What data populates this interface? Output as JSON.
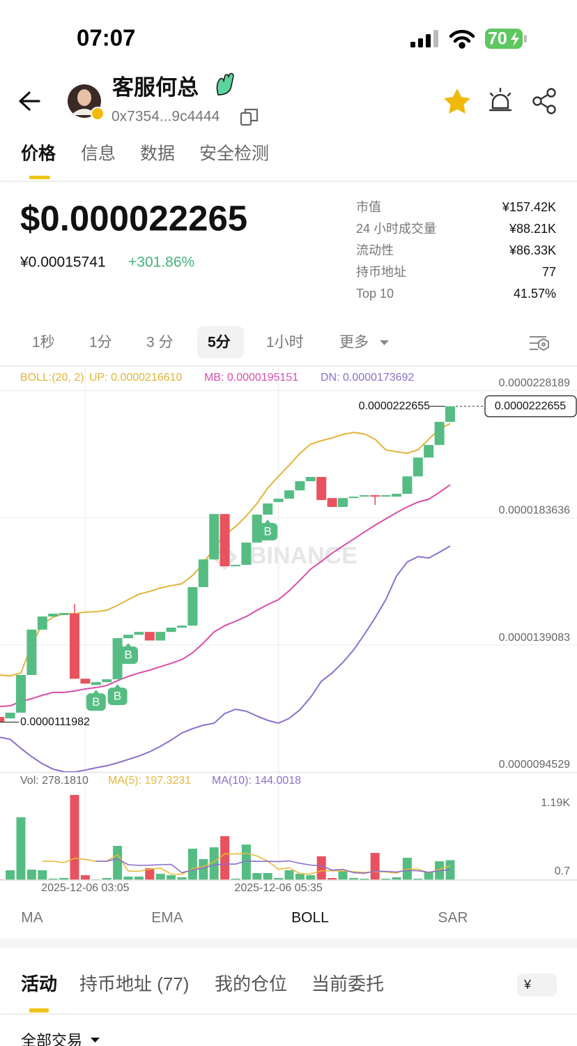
{
  "status_bar": {
    "time": "07:07",
    "battery": "70"
  },
  "header": {
    "name": "客服何总",
    "address": "0x7354...9c4444"
  },
  "tabs": [
    "价格",
    "信息",
    "数据",
    "安全检测"
  ],
  "price": {
    "usd": "$0.000022265",
    "cny": "¥0.00015741",
    "change": "+301.86%"
  },
  "stats": [
    {
      "label": "市值",
      "value": "¥157.42K"
    },
    {
      "label": "24 小时成交量",
      "value": "¥88.21K"
    },
    {
      "label": "流动性",
      "value": "¥86.33K"
    },
    {
      "label": "持币地址",
      "value": "77"
    },
    {
      "label": "Top 10",
      "value": "41.57%"
    }
  ],
  "intervals": [
    "1秒",
    "1分",
    "3 分",
    "5分",
    "1小时",
    "更多"
  ],
  "chart_data": {
    "type": "candlestick",
    "watermark": "BINANCE",
    "up_color": "#55bd83",
    "down_color": "#e8525e",
    "grid": true,
    "ylim": [
      9.4529e-06,
      2.28189e-05
    ],
    "yticks": [
      2.28189e-05,
      1.83636e-05,
      1.39083e-05,
      9.4529e-06
    ],
    "x": [
      null,
      null,
      null,
      null,
      null,
      null,
      null,
      null,
      "2025-12-06 03:05",
      null,
      null,
      null,
      null,
      null,
      null,
      null,
      null,
      null,
      null,
      null,
      null,
      null,
      null,
      null,
      null,
      null,
      "2025-12-06 05:35",
      null,
      null,
      null,
      null,
      null,
      null,
      null,
      null,
      null,
      null,
      null,
      null,
      null,
      null,
      null,
      null
    ],
    "open": [
      1.138e-05,
      1.133e-05,
      1.153e-05,
      1.285e-05,
      1.444e-05,
      1.49e-05,
      1.495e-05,
      1.5e-05,
      1.272e-05,
      1.25e-05,
      1.26e-05,
      1.27e-05,
      1.414e-05,
      1.426e-05,
      1.436e-05,
      1.406e-05,
      1.436e-05,
      1.451e-05,
      1.458e-05,
      1.593e-05,
      1.69e-05,
      1.849e-05,
      1.666e-05,
      1.671e-05,
      1.749e-05,
      1.847e-05,
      1.891e-05,
      1.903e-05,
      1.932e-05,
      1.964e-05,
      1.979e-05,
      1.905e-05,
      1.874e-05,
      1.905e-05,
      1.91e-05,
      1.915e-05,
      1.91e-05,
      1.91e-05,
      1.92e-05,
      1.981e-05,
      2.047e-05,
      2.091e-05,
      2.172e-05
    ],
    "high": [
      1.138e-05,
      1.153e-05,
      1.285e-05,
      1.444e-05,
      1.49e-05,
      1.5e-05,
      1.502e-05,
      1.534e-05,
      1.272e-05,
      1.26e-05,
      1.27e-05,
      1.414e-05,
      1.426e-05,
      1.436e-05,
      1.436e-05,
      1.436e-05,
      1.451e-05,
      1.458e-05,
      1.593e-05,
      1.69e-05,
      1.849e-05,
      1.849e-05,
      1.671e-05,
      1.749e-05,
      1.847e-05,
      1.886e-05,
      1.903e-05,
      1.932e-05,
      1.964e-05,
      1.979e-05,
      1.979e-05,
      1.905e-05,
      1.905e-05,
      1.91e-05,
      1.915e-05,
      1.915e-05,
      1.915e-05,
      1.92e-05,
      1.981e-05,
      2.047e-05,
      2.091e-05,
      2.172e-05,
      2.22655e-05
    ],
    "low": [
      1.11982e-05,
      1.133e-05,
      1.153e-05,
      1.285e-05,
      1.444e-05,
      1.49e-05,
      1.495e-05,
      1.272e-05,
      1.255e-05,
      1.25e-05,
      1.26e-05,
      1.27e-05,
      1.414e-05,
      1.426e-05,
      1.406e-05,
      1.406e-05,
      1.436e-05,
      1.451e-05,
      1.458e-05,
      1.593e-05,
      1.69e-05,
      1.666e-05,
      1.666e-05,
      1.671e-05,
      1.749e-05,
      1.847e-05,
      1.891e-05,
      1.903e-05,
      1.932e-05,
      1.964e-05,
      1.898e-05,
      1.874e-05,
      1.874e-05,
      1.905e-05,
      1.91e-05,
      1.881e-05,
      1.91e-05,
      1.91e-05,
      1.92e-05,
      1.981e-05,
      2.047e-05,
      2.091e-05,
      2.172e-05
    ],
    "close": [
      1.121e-05,
      1.153e-05,
      1.285e-05,
      1.444e-05,
      1.49e-05,
      1.5e-05,
      1.502e-05,
      1.272e-05,
      1.255e-05,
      1.26e-05,
      1.27e-05,
      1.414e-05,
      1.426e-05,
      1.436e-05,
      1.406e-05,
      1.436e-05,
      1.451e-05,
      1.458e-05,
      1.593e-05,
      1.69e-05,
      1.849e-05,
      1.666e-05,
      1.671e-05,
      1.749e-05,
      1.847e-05,
      1.886e-05,
      1.903e-05,
      1.932e-05,
      1.964e-05,
      1.979e-05,
      1.898e-05,
      1.874e-05,
      1.905e-05,
      1.91e-05,
      1.915e-05,
      1.91e-05,
      1.915e-05,
      1.92e-05,
      1.981e-05,
      2.047e-05,
      2.091e-05,
      2.172e-05,
      2.22655e-05
    ],
    "boll_label": "BOLL:(20, 2)",
    "series": [
      {
        "name": "UP: 0.0000216610",
        "color": "#e2b43a",
        "values": [
          1.285e-05,
          1.282e-05,
          1.292e-05,
          1.39e-05,
          1.463e-05,
          1.488e-05,
          1.5e-05,
          1.5e-05,
          1.505e-05,
          1.507e-05,
          1.512e-05,
          1.529e-05,
          1.549e-05,
          1.568e-05,
          1.578e-05,
          1.59e-05,
          1.598e-05,
          1.605e-05,
          1.634e-05,
          1.676e-05,
          1.73e-05,
          1.776e-05,
          1.805e-05,
          1.842e-05,
          1.886e-05,
          1.94e-05,
          1.981e-05,
          2.02e-05,
          2.062e-05,
          2.094e-05,
          2.106e-05,
          2.116e-05,
          2.128e-05,
          2.135e-05,
          2.13e-05,
          2.111e-05,
          2.074e-05,
          2.067e-05,
          2.062e-05,
          2.074e-05,
          2.111e-05,
          2.147e-05,
          2.1661e-05
        ]
      },
      {
        "name": "MB: 0.0000195151",
        "color": "#d94eac",
        "values": [
          1.175e-05,
          1.177e-05,
          1.192e-05,
          1.202e-05,
          1.214e-05,
          1.224e-05,
          1.224e-05,
          1.229e-05,
          1.236e-05,
          1.241e-05,
          1.248e-05,
          1.265e-05,
          1.28e-05,
          1.292e-05,
          1.302e-05,
          1.314e-05,
          1.326e-05,
          1.339e-05,
          1.363e-05,
          1.397e-05,
          1.436e-05,
          1.458e-05,
          1.473e-05,
          1.49e-05,
          1.512e-05,
          1.532e-05,
          1.549e-05,
          1.58e-05,
          1.617e-05,
          1.656e-05,
          1.683e-05,
          1.712e-05,
          1.737e-05,
          1.761e-05,
          1.786e-05,
          1.81e-05,
          1.832e-05,
          1.854e-05,
          1.874e-05,
          1.891e-05,
          1.901e-05,
          1.925e-05,
          1.95151e-05
        ]
      },
      {
        "name": "DN: 0.0000173692",
        "color": "#8b6fcb",
        "values": [
          1.067e-05,
          1.06e-05,
          1.028e-05,
          9.99e-06,
          9.74e-06,
          9.55e-06,
          9.46e-06,
          9.45e-06,
          9.52e-06,
          9.6e-06,
          9.67e-06,
          9.77e-06,
          9.89e-06,
          1.001e-05,
          1.016e-05,
          1.035e-05,
          1.057e-05,
          1.082e-05,
          1.097e-05,
          1.109e-05,
          1.116e-05,
          1.15e-05,
          1.165e-05,
          1.158e-05,
          1.141e-05,
          1.126e-05,
          1.116e-05,
          1.133e-05,
          1.163e-05,
          1.207e-05,
          1.263e-05,
          1.292e-05,
          1.329e-05,
          1.373e-05,
          1.427e-05,
          1.485e-05,
          1.549e-05,
          1.632e-05,
          1.681e-05,
          1.7e-05,
          1.695e-05,
          1.715e-05,
          1.73692e-05
        ]
      }
    ],
    "markers": [
      {
        "index": 9,
        "label": "B"
      },
      {
        "index": 11,
        "label": "B"
      },
      {
        "index": 12,
        "label": "B"
      },
      {
        "index": 25,
        "label": "B"
      }
    ],
    "volume": {
      "label": "Vol: 278.1810",
      "ylim": [
        0.7,
        1190
      ],
      "yticks": [
        {
          "value": 1190,
          "label": "1.19K"
        },
        0.7
      ],
      "values": [
        10,
        137,
        878,
        146,
        137,
        20,
        29,
        1190,
        68,
        10,
        29,
        478,
        49,
        49,
        166,
        88,
        68,
        39,
        439,
        293,
        458,
        614,
        20,
        497,
        98,
        98,
        29,
        137,
        88,
        68,
        332,
        29,
        127,
        29,
        20,
        380,
        20,
        39,
        312,
        20,
        117,
        263,
        278.181
      ],
      "series": [
        {
          "name": "MA(5): 197.3231",
          "color": "#e8b838",
          "values": [
            null,
            null,
            null,
            null,
            261.6,
            263.6,
            242,
            304.4,
            288.8,
            263.4,
            265.2,
            355,
            126.8,
            123,
            154.2,
            166,
            84,
            82,
            160,
            185.4,
            259.4,
            368.6,
            364.8,
            376.4,
            337.4,
            265.4,
            148.4,
            171.8,
            90,
            84,
            130.8,
            130.8,
            128.8,
            117,
            107.4,
            117,
            115.2,
            97.6,
            154.2,
            154.2,
            101.6,
            150.2,
            197.3231
          ]
        },
        {
          "name": "MA(10): 144.0018",
          "color": "#8b6fcb",
          "values": [
            null,
            null,
            null,
            null,
            null,
            null,
            null,
            null,
            null,
            262.5,
            264.4,
            298.5,
            215.6,
            205.9,
            208.8,
            215.6,
            219.5,
            104.4,
            141.5,
            169.8,
            212.7,
            226.3,
            223.4,
            268.2,
            261.4,
            262.4,
            258.5,
            268.3,
            233.2,
            210.7,
            198.1,
            139.6,
            150.3,
            103.5,
            95.7,
            123.9,
            123,
            113.2,
            135.6,
            130.8,
            109.3,
            132.7,
            144.0018
          ]
        }
      ]
    }
  },
  "indicator_tabs": [
    "MA",
    "EMA",
    "BOLL",
    "SAR"
  ],
  "activity_tabs": [
    "活动",
    "持币地址 (77)",
    "我的仓位",
    "当前委托"
  ],
  "currency": "¥",
  "filter": "全部交易"
}
